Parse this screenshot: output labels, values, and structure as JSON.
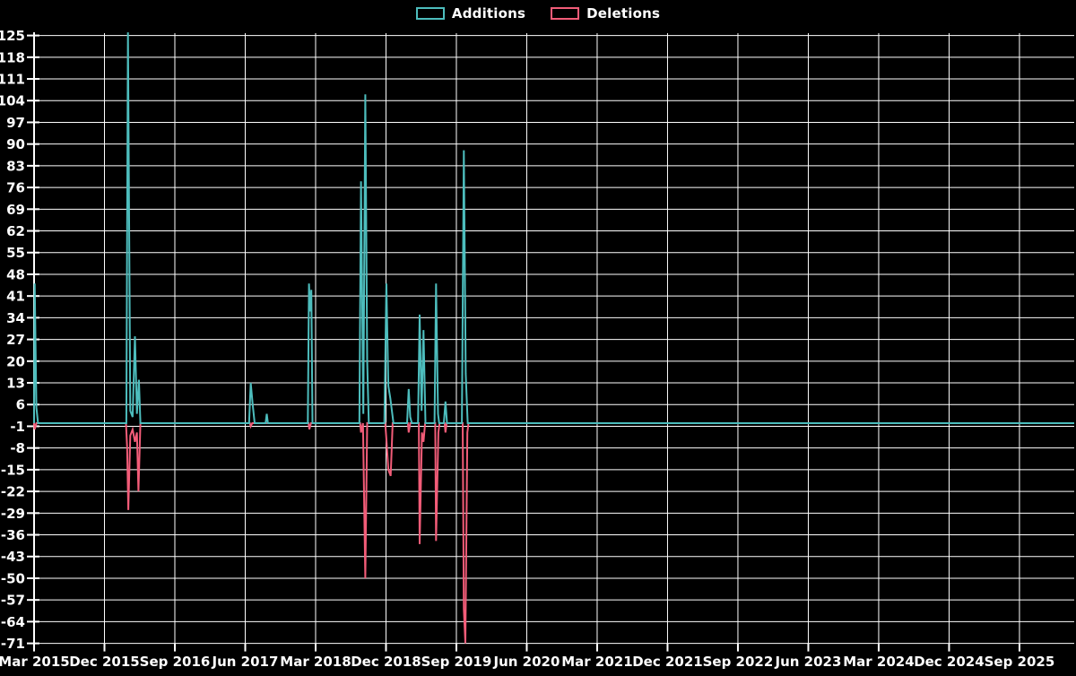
{
  "legend": {
    "items": [
      {
        "label": "Additions",
        "color": "#4dbdbd"
      },
      {
        "label": "Deletions",
        "color": "#f25c78"
      }
    ]
  },
  "chart_data": {
    "type": "line",
    "title": "",
    "xlabel": "",
    "ylabel": "",
    "background_color": "#000000",
    "grid": true,
    "grid_color": "#ffffff",
    "text_color": "#ffffff",
    "legend_position": "top-center",
    "x_unit": "months since Mar 2015",
    "xlim_months": [
      0,
      133
    ],
    "ylim": [
      -71,
      125
    ],
    "y_ticks": [
      125,
      118,
      111,
      104,
      97,
      90,
      83,
      76,
      69,
      62,
      55,
      48,
      41,
      34,
      27,
      20,
      13,
      6,
      -1,
      -8,
      -15,
      -22,
      -29,
      -36,
      -43,
      -50,
      -57,
      -64,
      -71
    ],
    "x_ticks": [
      {
        "label": "Mar 2015",
        "month": 0
      },
      {
        "label": "Dec 2015",
        "month": 9
      },
      {
        "label": "Sep 2016",
        "month": 18
      },
      {
        "label": "Jun 2017",
        "month": 27
      },
      {
        "label": "Mar 2018",
        "month": 36
      },
      {
        "label": "Dec 2018",
        "month": 45
      },
      {
        "label": "Sep 2019",
        "month": 54
      },
      {
        "label": "Jun 2020",
        "month": 63
      },
      {
        "label": "Mar 2021",
        "month": 72
      },
      {
        "label": "Dec 2021",
        "month": 81
      },
      {
        "label": "Sep 2022",
        "month": 90
      },
      {
        "label": "Jun 2023",
        "month": 99
      },
      {
        "label": "Mar 2024",
        "month": 108
      },
      {
        "label": "Dec 2024",
        "month": 117
      },
      {
        "label": "Sep 2025",
        "month": 126
      }
    ],
    "series": [
      {
        "name": "Additions",
        "color": "#4dbdbd",
        "points": [
          [
            0,
            0
          ],
          [
            0.08,
            45
          ],
          [
            0.3,
            5
          ],
          [
            0.5,
            0
          ],
          [
            11.8,
            0
          ],
          [
            12.0,
            126
          ],
          [
            12.3,
            4
          ],
          [
            12.6,
            2
          ],
          [
            12.9,
            28
          ],
          [
            13.15,
            3
          ],
          [
            13.4,
            14
          ],
          [
            13.6,
            0
          ],
          [
            27.5,
            0
          ],
          [
            27.7,
            13
          ],
          [
            27.95,
            6
          ],
          [
            28.2,
            0
          ],
          [
            29.6,
            0
          ],
          [
            29.75,
            3
          ],
          [
            29.9,
            0
          ],
          [
            35.0,
            0
          ],
          [
            35.15,
            45
          ],
          [
            35.3,
            36
          ],
          [
            35.45,
            43
          ],
          [
            35.6,
            0
          ],
          [
            41.6,
            0
          ],
          [
            41.8,
            78
          ],
          [
            42.1,
            3
          ],
          [
            42.35,
            106
          ],
          [
            42.6,
            20
          ],
          [
            42.8,
            0
          ],
          [
            44.8,
            0
          ],
          [
            45.05,
            45
          ],
          [
            45.3,
            12
          ],
          [
            45.55,
            8
          ],
          [
            45.8,
            3
          ],
          [
            45.95,
            0
          ],
          [
            47.7,
            0
          ],
          [
            47.9,
            11
          ],
          [
            48.1,
            2
          ],
          [
            48.3,
            0
          ],
          [
            49.1,
            0
          ],
          [
            49.3,
            35
          ],
          [
            49.55,
            4
          ],
          [
            49.8,
            30
          ],
          [
            50.05,
            0
          ],
          [
            51.2,
            0
          ],
          [
            51.4,
            45
          ],
          [
            51.65,
            3
          ],
          [
            51.8,
            0
          ],
          [
            52.4,
            0
          ],
          [
            52.6,
            7
          ],
          [
            52.8,
            0
          ],
          [
            54.7,
            0
          ],
          [
            54.95,
            88
          ],
          [
            55.2,
            16
          ],
          [
            55.45,
            0
          ],
          [
            133,
            0
          ]
        ]
      },
      {
        "name": "Deletions",
        "color": "#f25c78",
        "points": [
          [
            0,
            0
          ],
          [
            0.08,
            -2
          ],
          [
            0.3,
            0
          ],
          [
            11.75,
            0
          ],
          [
            11.9,
            -8
          ],
          [
            12.05,
            -28
          ],
          [
            12.3,
            -4
          ],
          [
            12.6,
            -2
          ],
          [
            12.9,
            -6
          ],
          [
            13.15,
            -3
          ],
          [
            13.35,
            -22
          ],
          [
            13.6,
            0
          ],
          [
            27.6,
            0
          ],
          [
            27.7,
            -1
          ],
          [
            27.9,
            0
          ],
          [
            35.1,
            0
          ],
          [
            35.2,
            -2
          ],
          [
            35.4,
            0
          ],
          [
            41.7,
            0
          ],
          [
            41.8,
            -3
          ],
          [
            42.05,
            0
          ],
          [
            42.35,
            -50
          ],
          [
            42.6,
            0
          ],
          [
            44.9,
            0
          ],
          [
            45.05,
            -5
          ],
          [
            45.3,
            -15
          ],
          [
            45.6,
            -17
          ],
          [
            45.85,
            0
          ],
          [
            47.8,
            0
          ],
          [
            47.9,
            -3
          ],
          [
            48.1,
            0
          ],
          [
            49.2,
            0
          ],
          [
            49.3,
            -39
          ],
          [
            49.6,
            -3
          ],
          [
            49.8,
            -6
          ],
          [
            50.0,
            0
          ],
          [
            51.3,
            0
          ],
          [
            51.4,
            -38
          ],
          [
            51.7,
            -3
          ],
          [
            51.85,
            0
          ],
          [
            52.5,
            0
          ],
          [
            52.6,
            -3
          ],
          [
            52.75,
            0
          ],
          [
            54.8,
            0
          ],
          [
            54.95,
            -60
          ],
          [
            55.15,
            -71
          ],
          [
            55.4,
            -3
          ],
          [
            55.55,
            0
          ],
          [
            133,
            0
          ]
        ]
      }
    ]
  }
}
